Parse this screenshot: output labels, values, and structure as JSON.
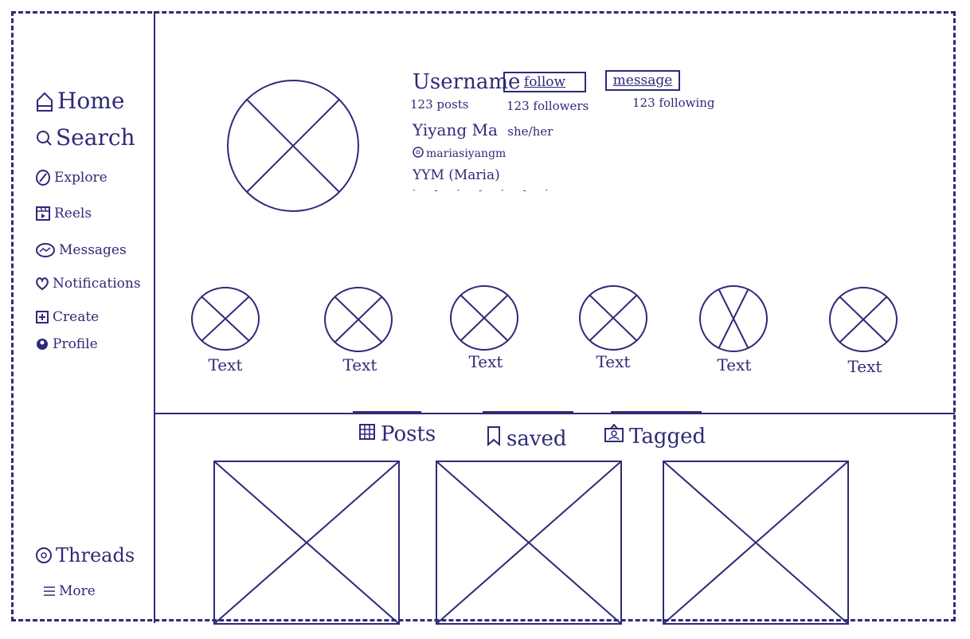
{
  "sidebar": {
    "items": [
      {
        "label": "Home",
        "icon": "home-icon"
      },
      {
        "label": "Search",
        "icon": "search-icon"
      },
      {
        "label": "Explore",
        "icon": "explore-icon"
      },
      {
        "label": "Reels",
        "icon": "reels-icon"
      },
      {
        "label": "Messages",
        "icon": "messages-icon"
      },
      {
        "label": "Notifications",
        "icon": "heart-icon"
      },
      {
        "label": "Create",
        "icon": "plus-icon"
      },
      {
        "label": "Profile",
        "icon": "profile-icon"
      }
    ],
    "bottom_items": [
      {
        "label": "Threads",
        "icon": "threads-icon"
      },
      {
        "label": "More",
        "icon": "menu-icon"
      }
    ]
  },
  "profile": {
    "username": "Username",
    "follow_label": "follow",
    "message_label": "message",
    "posts_count": "123 posts",
    "followers_count": "123 followers",
    "following_count": "123 following",
    "name": "Yiyang Ma",
    "pronouns": "she/her",
    "handle": "mariasiyangm",
    "bio": "YYM (Maria)"
  },
  "highlights": [
    {
      "label": "Text"
    },
    {
      "label": "Text"
    },
    {
      "label": "Text"
    },
    {
      "label": "Text"
    },
    {
      "label": "Text"
    },
    {
      "label": "Text"
    }
  ],
  "tabs": [
    {
      "label": "Posts",
      "icon": "grid-icon"
    },
    {
      "label": "saved",
      "icon": "bookmark-icon"
    },
    {
      "label": "Tagged",
      "icon": "tagged-icon"
    }
  ],
  "colors": {
    "ink": "#2e2a78",
    "background": "#ffffff"
  }
}
